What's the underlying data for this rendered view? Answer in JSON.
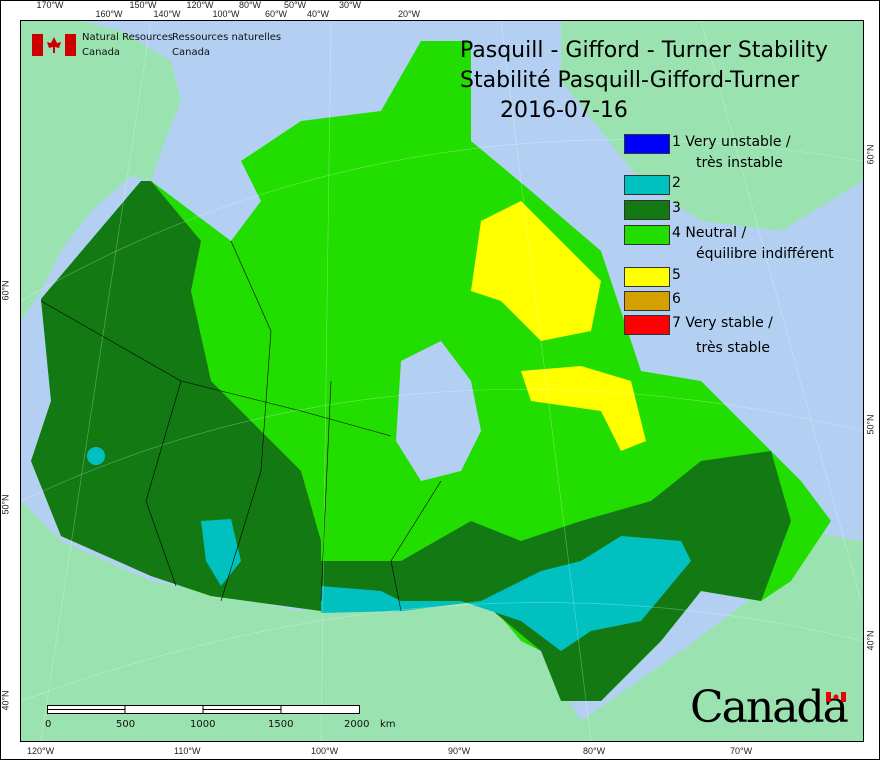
{
  "agency": {
    "en_line1": "Natural Resources",
    "en_line2": "Canada",
    "fr_line1": "Ressources naturelles",
    "fr_line2": "Canada"
  },
  "title": {
    "line1": "Pasquill - Gifford - Turner Stability",
    "line2": "Stabilité Pasquill-Gifford-Turner",
    "date": "2016-07-16"
  },
  "legend": [
    {
      "class": "1",
      "label1": "1 Very unstable /",
      "label2": "très instable",
      "color": "#0000ff"
    },
    {
      "class": "2",
      "label1": "2",
      "label2": "",
      "color": "#00c0c0"
    },
    {
      "class": "3",
      "label1": "3",
      "label2": "",
      "color": "#137a13"
    },
    {
      "class": "4",
      "label1": "4 Neutral /",
      "label2": "équilibre indifférent",
      "color": "#22dd00"
    },
    {
      "class": "5",
      "label1": "5",
      "label2": "",
      "color": "#ffff00"
    },
    {
      "class": "6",
      "label1": "6",
      "label2": "",
      "color": "#d4a000"
    },
    {
      "class": "7",
      "label1": "7 Very stable /",
      "label2": "très stable",
      "color": "#ff0000"
    }
  ],
  "top_ticks": [
    "170°W",
    "160°W",
    "150°W",
    "140°W",
    "120°W",
    "100°W",
    "80°W",
    "60°W",
    "50°W",
    "40°W",
    "30°W",
    "20°W"
  ],
  "bottom_ticks": [
    "120°W",
    "110°W",
    "100°W",
    "90°W",
    "80°W",
    "70°W"
  ],
  "left_ticks": [
    "60°N",
    "50°N",
    "40°N"
  ],
  "right_ticks": [
    "60°N",
    "50°N",
    "40°N"
  ],
  "scale_bar": {
    "labels": [
      "0",
      "500",
      "1000",
      "1500",
      "2000"
    ],
    "unit": "km"
  },
  "wordmark": "Canada",
  "colors": {
    "ocean": "#b3d0f2",
    "land": "#9ae3b0"
  }
}
